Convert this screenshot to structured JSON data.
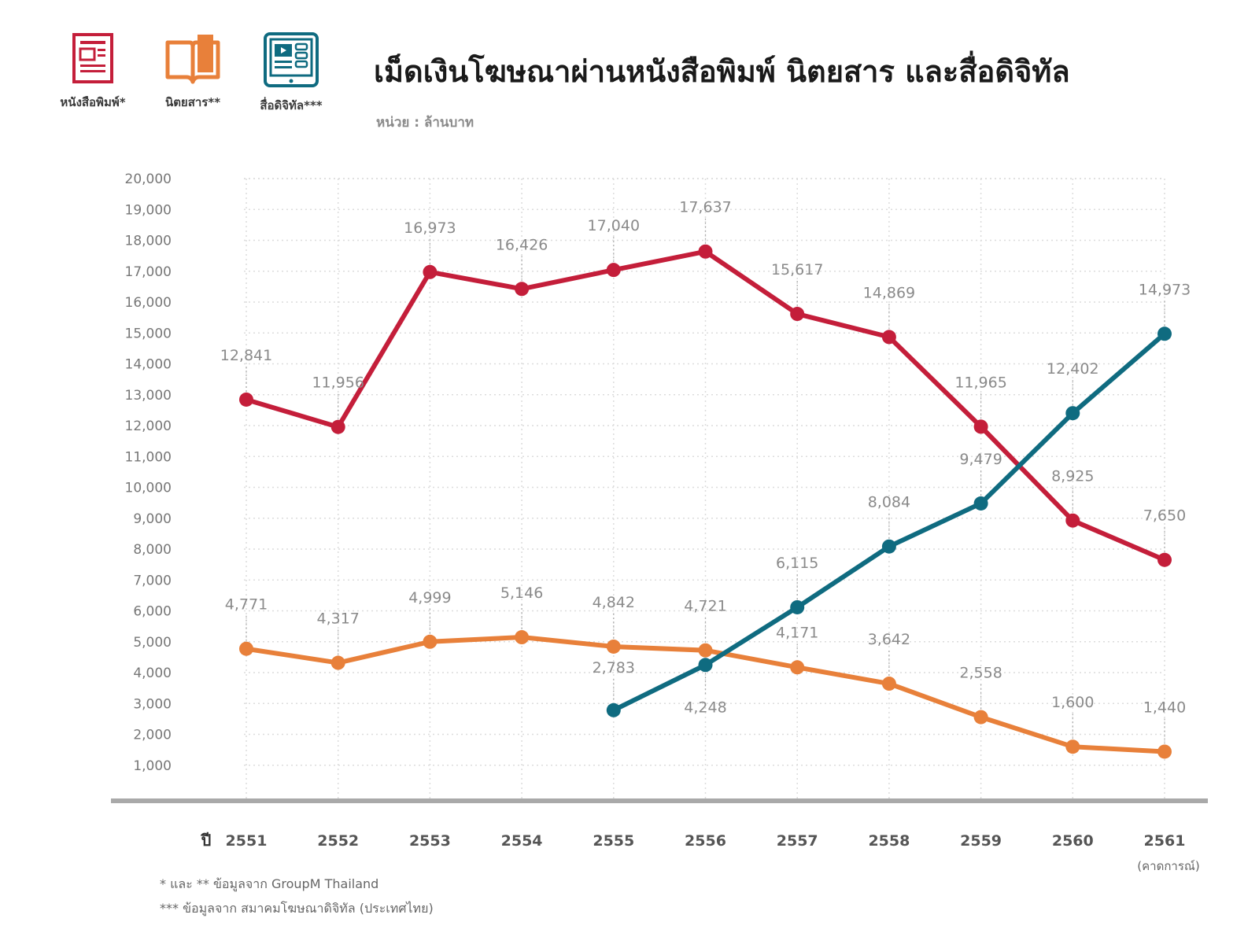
{
  "header": {
    "title": "เม็ดเงินโฆษณาผ่านหนังสือพิมพ์ นิตยสาร และสื่อดิจิทัล",
    "unit": "หน่วย : ล้านบาท"
  },
  "legend": [
    {
      "label": "หนังสือพิมพ์*",
      "icon": "newspaper-icon",
      "color": "#c41e3a"
    },
    {
      "label": "นิตยสาร**",
      "icon": "magazine-icon",
      "color": "#e8803a"
    },
    {
      "label": "สื่อดิจิทัล***",
      "icon": "digital-media-icon",
      "color": "#0f6b80"
    }
  ],
  "footnotes": {
    "line1": "* และ ** ข้อมูลจาก GroupM Thailand",
    "line2": "*** ข้อมูลจาก สมาคมโฆษณาดิจิทัล (ประเทศไทย)"
  },
  "chart_data": {
    "type": "line",
    "x_axis_label": "ปี",
    "categories": [
      "2551",
      "2552",
      "2553",
      "2554",
      "2555",
      "2556",
      "2557",
      "2558",
      "2559",
      "2560",
      "2561"
    ],
    "last_category_note": "(คาดการณ์)",
    "ylim": [
      0,
      20000
    ],
    "y_ticks": [
      "1,000",
      "2,000",
      "3,000",
      "4,000",
      "5,000",
      "6,000",
      "7,000",
      "8,000",
      "9,000",
      "10,000",
      "11,000",
      "12,000",
      "13,000",
      "14,000",
      "15,000",
      "16,000",
      "17,000",
      "18,000",
      "19,000",
      "20,000"
    ],
    "grid": true,
    "series": [
      {
        "name": "หนังสือพิมพ์*",
        "color": "#c41e3a",
        "values": [
          12841,
          11956,
          16973,
          16426,
          17040,
          17637,
          15617,
          14869,
          11965,
          8925,
          7650
        ],
        "labels": [
          "12,841",
          "11,956",
          "16,973",
          "16,426",
          "17,040",
          "17,637",
          "15,617",
          "14,869",
          "11,965",
          "8,925",
          "7,650"
        ]
      },
      {
        "name": "นิตยสาร**",
        "color": "#e8803a",
        "values": [
          4771,
          4317,
          4999,
          5146,
          4842,
          4721,
          4171,
          3642,
          2558,
          1600,
          1440
        ],
        "labels": [
          "4,771",
          "4,317",
          "4,999",
          "5,146",
          "4,842",
          "4,721",
          "4,171",
          "3,642",
          "2,558",
          "1,600",
          "1,440"
        ]
      },
      {
        "name": "สื่อดิจิทัล***",
        "color": "#0f6b80",
        "values": [
          null,
          null,
          null,
          null,
          2783,
          4248,
          6115,
          8084,
          9479,
          12402,
          14973
        ],
        "labels": [
          null,
          null,
          null,
          null,
          "2,783",
          "4,248",
          "6,115",
          "8,084",
          "9,479",
          "12,402",
          "14,973"
        ]
      }
    ]
  }
}
